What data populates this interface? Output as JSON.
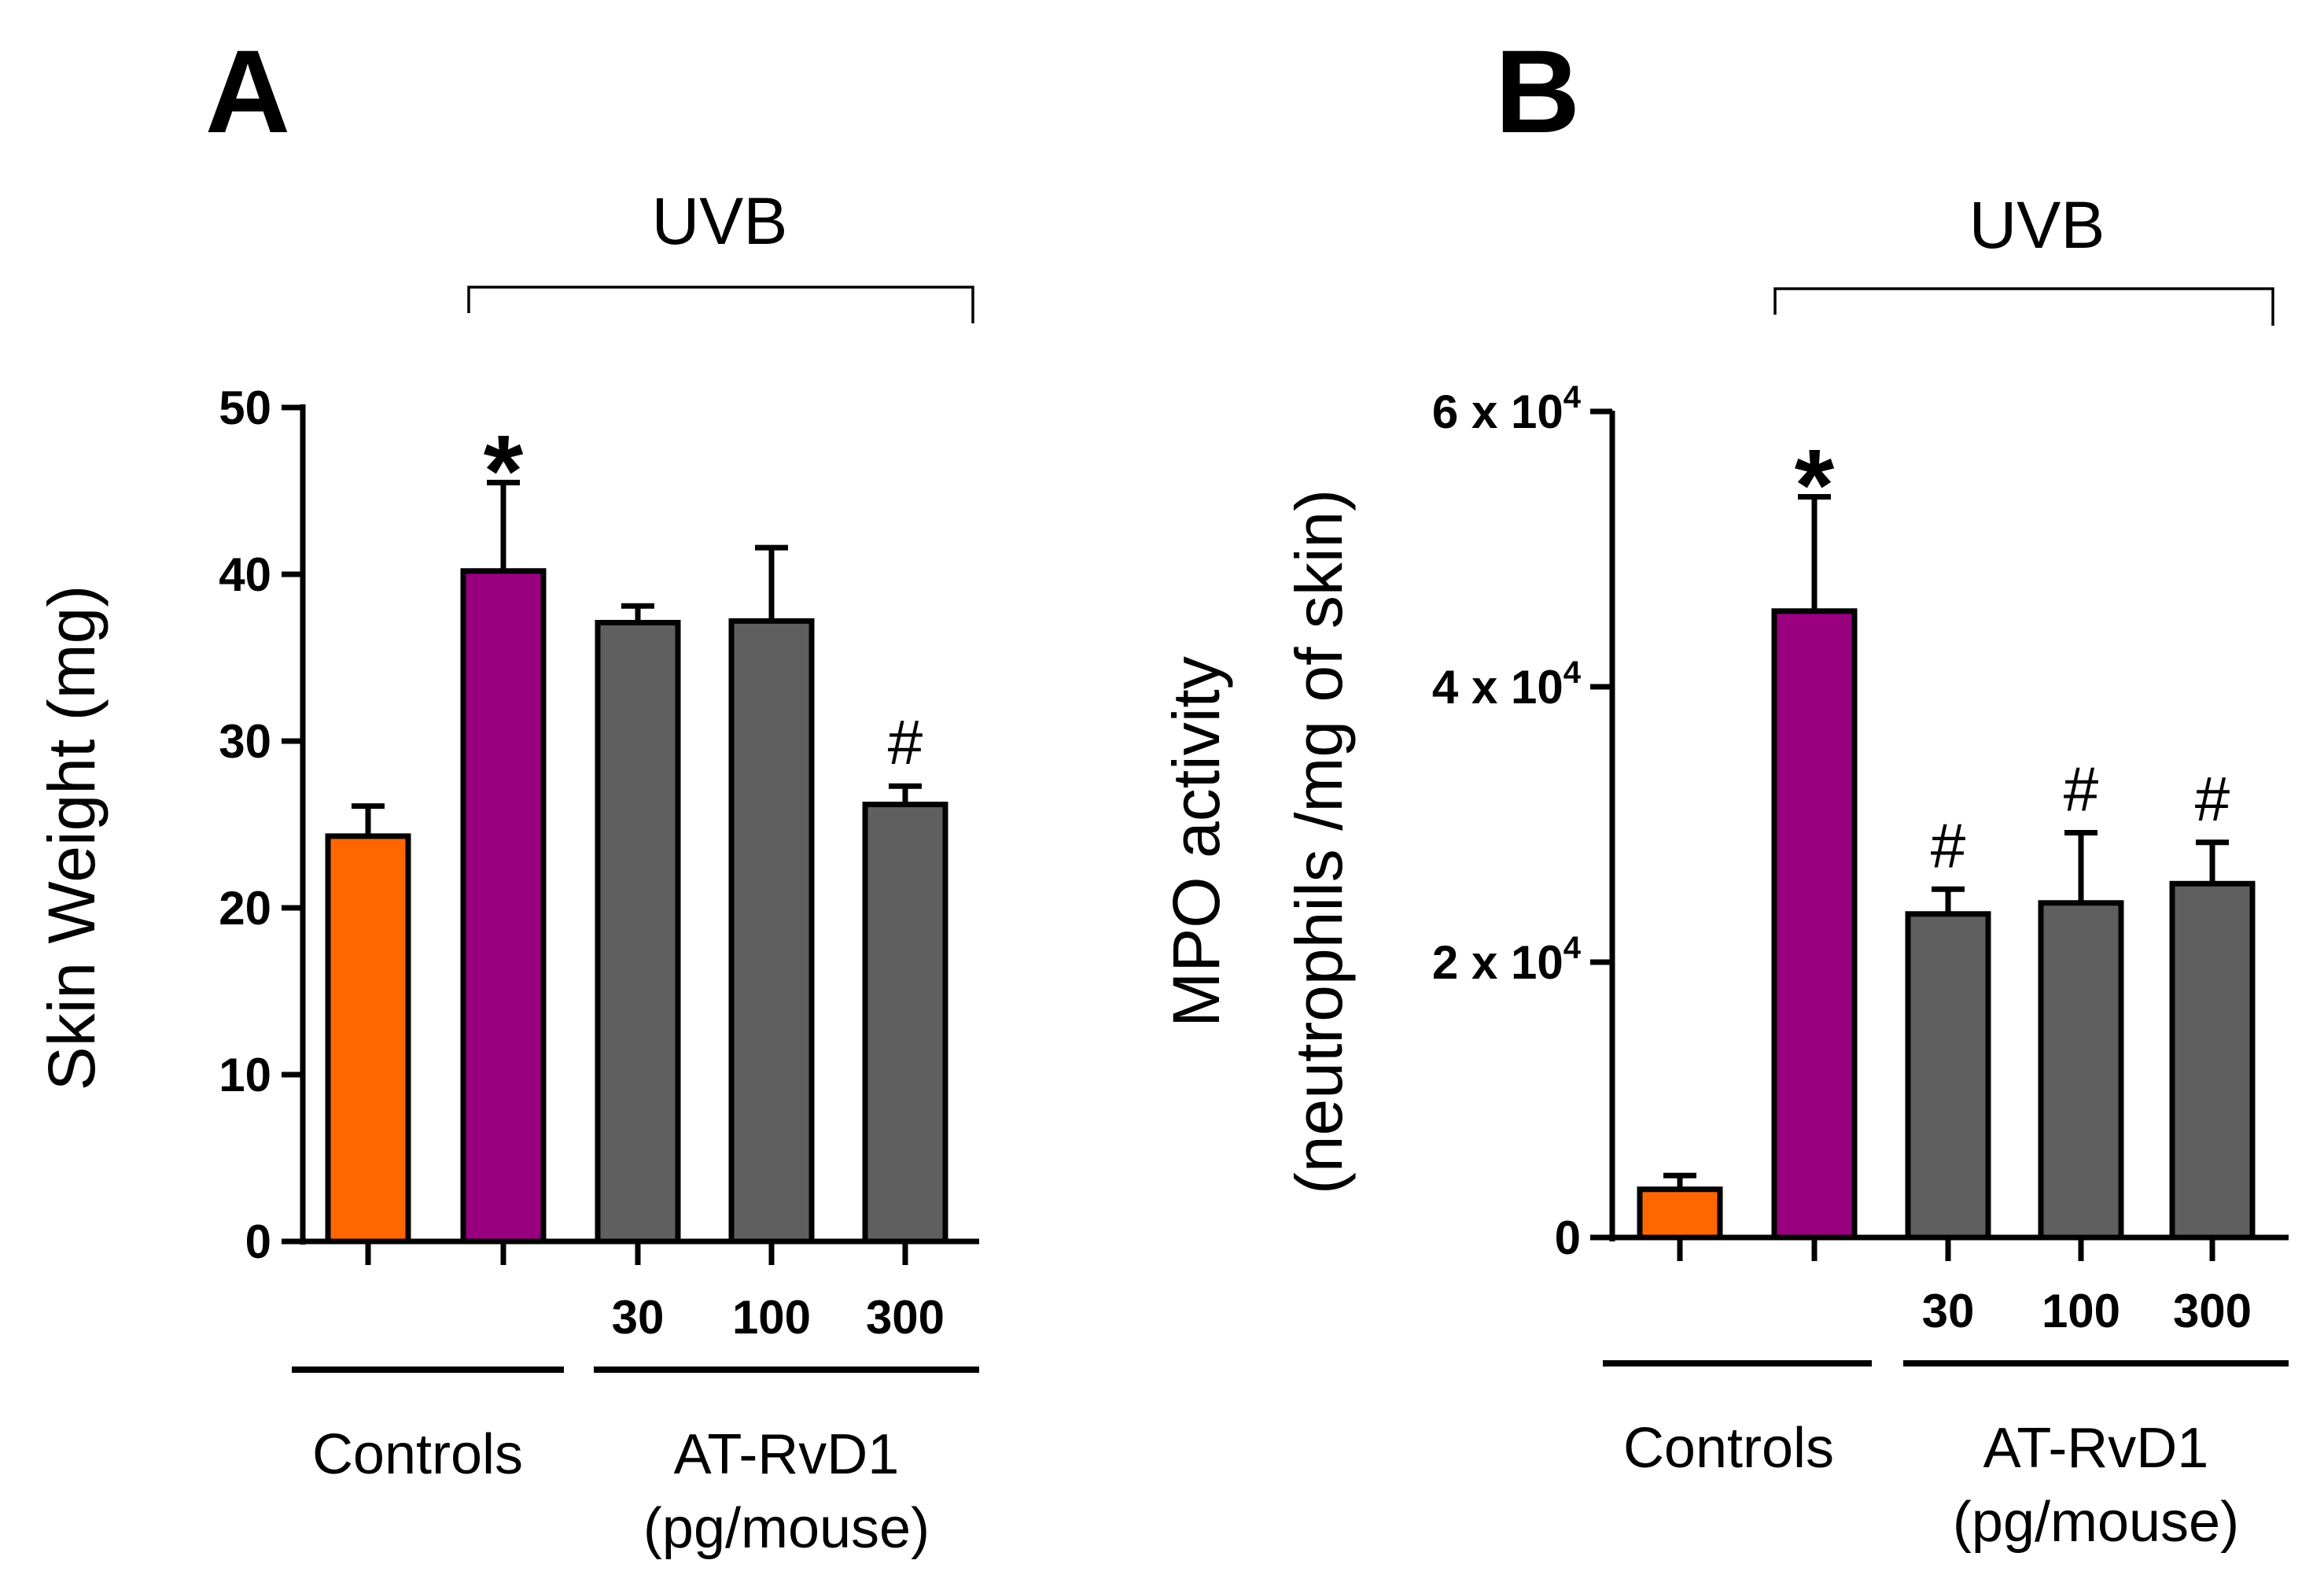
{
  "colors": {
    "controls_naive": "#ff6600",
    "uvb_vehicle": "#990080",
    "atrvd1": "#5f5f5f"
  },
  "chart_data": [
    {
      "panel": "A",
      "type": "bar",
      "ylabel": "Skin Weight (mg)",
      "ylim": [
        0,
        50
      ],
      "yticks": [
        0,
        10,
        20,
        30,
        40,
        50
      ],
      "bracket_label": "UVB",
      "categories": [
        "",
        "",
        "30",
        "100",
        "300"
      ],
      "values": [
        24.3,
        40.2,
        37.1,
        37.2,
        26.2
      ],
      "errors": [
        1.8,
        5.3,
        1.0,
        4.4,
        1.1
      ],
      "bar_colors": [
        "#ff6600",
        "#990080",
        "#5f5f5f",
        "#5f5f5f",
        "#5f5f5f"
      ],
      "significance": [
        "",
        "*",
        "",
        "",
        "#"
      ],
      "groups": [
        {
          "label_lines": [
            "Controls"
          ]
        },
        {
          "label_lines": [
            "AT-RvD1",
            "(pg/mouse)"
          ]
        }
      ]
    },
    {
      "panel": "B",
      "type": "bar",
      "ylabel_lines": [
        "MPO activity",
        "(neutrophils /mg of skin)"
      ],
      "ylim": [
        0,
        60000
      ],
      "yticks": [
        0,
        20000,
        40000,
        60000
      ],
      "ytick_labels": [
        {
          "base": "0",
          "exp": ""
        },
        {
          "base": "2 x 10",
          "exp": "4"
        },
        {
          "base": "4 x 10",
          "exp": "4"
        },
        {
          "base": "6 x 10",
          "exp": "4"
        }
      ],
      "bracket_label": "UVB",
      "categories": [
        "",
        "",
        "30",
        "100",
        "300"
      ],
      "values": [
        3500,
        45500,
        23500,
        24300,
        25700
      ],
      "errors": [
        1000,
        8300,
        1800,
        5100,
        3000
      ],
      "bar_colors": [
        "#ff6600",
        "#990080",
        "#5f5f5f",
        "#5f5f5f",
        "#5f5f5f"
      ],
      "significance": [
        "",
        "*",
        "#",
        "#",
        "#"
      ],
      "groups": [
        {
          "label_lines": [
            "Controls"
          ]
        },
        {
          "label_lines": [
            "AT-RvD1",
            "(pg/mouse)"
          ]
        }
      ]
    }
  ]
}
